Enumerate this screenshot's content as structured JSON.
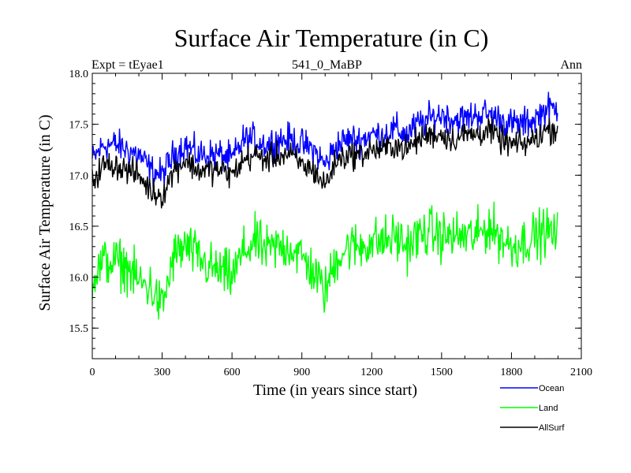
{
  "chart_data": {
    "type": "line",
    "title": "Surface Air Temperature (in C)",
    "subtitle_left": "Expt = tEyae1",
    "subtitle_center": "541_0_MaBP",
    "subtitle_right": "Ann",
    "xlabel": "Time (in years since start)",
    "ylabel": "Surface Air Temperature (in C)",
    "xlim": [
      0,
      2100
    ],
    "ylim": [
      15.2,
      18.0
    ],
    "xticks": [
      0,
      300,
      600,
      900,
      1200,
      1500,
      1800,
      2100
    ],
    "xtick_labels": [
      "0",
      "300",
      "600",
      "900",
      "1200",
      "1500",
      "1800",
      "2100"
    ],
    "yticks": [
      15.5,
      16.0,
      16.5,
      17.0,
      17.5,
      18.0
    ],
    "ytick_labels": [
      "15.5",
      "16.0",
      "16.5",
      "17.0",
      "17.5",
      "18.0"
    ],
    "legend_position": "below-right",
    "series": [
      {
        "name": "Ocean",
        "color": "#0000ff",
        "noise": 0.13,
        "x": [
          0,
          50,
          100,
          150,
          200,
          250,
          300,
          350,
          400,
          450,
          500,
          550,
          600,
          650,
          700,
          750,
          800,
          850,
          900,
          950,
          1000,
          1050,
          1100,
          1150,
          1200,
          1250,
          1300,
          1350,
          1400,
          1450,
          1500,
          1550,
          1600,
          1650,
          1700,
          1750,
          1800,
          1850,
          1900,
          1950,
          2000
        ],
        "values": [
          17.15,
          17.3,
          17.3,
          17.25,
          17.2,
          17.05,
          17.0,
          17.2,
          17.3,
          17.2,
          17.2,
          17.2,
          17.15,
          17.35,
          17.35,
          17.3,
          17.35,
          17.35,
          17.3,
          17.25,
          17.1,
          17.3,
          17.35,
          17.35,
          17.4,
          17.4,
          17.45,
          17.4,
          17.5,
          17.55,
          17.6,
          17.55,
          17.55,
          17.6,
          17.6,
          17.55,
          17.5,
          17.5,
          17.55,
          17.65,
          17.65
        ]
      },
      {
        "name": "Land",
        "color": "#00ff00",
        "noise": 0.2,
        "x": [
          0,
          50,
          100,
          150,
          200,
          250,
          300,
          350,
          400,
          450,
          500,
          550,
          600,
          650,
          700,
          750,
          800,
          850,
          900,
          950,
          1000,
          1050,
          1100,
          1150,
          1200,
          1250,
          1300,
          1350,
          1400,
          1450,
          1500,
          1550,
          1600,
          1650,
          1700,
          1750,
          1800,
          1850,
          1900,
          1950,
          2000
        ],
        "values": [
          16.0,
          16.15,
          16.15,
          16.1,
          15.95,
          15.9,
          15.7,
          16.2,
          16.3,
          16.2,
          16.1,
          16.05,
          16.0,
          16.25,
          16.35,
          16.25,
          16.3,
          16.3,
          16.2,
          16.05,
          15.85,
          16.2,
          16.3,
          16.3,
          16.35,
          16.35,
          16.4,
          16.3,
          16.4,
          16.45,
          16.4,
          16.4,
          16.4,
          16.4,
          16.5,
          16.4,
          16.3,
          16.35,
          16.4,
          16.45,
          16.4
        ]
      },
      {
        "name": "AllSurf",
        "color": "#000000",
        "noise": 0.11,
        "x": [
          0,
          50,
          100,
          150,
          200,
          250,
          300,
          350,
          400,
          450,
          500,
          550,
          600,
          650,
          700,
          750,
          800,
          850,
          900,
          950,
          1000,
          1050,
          1100,
          1150,
          1200,
          1250,
          1300,
          1350,
          1400,
          1450,
          1500,
          1550,
          1600,
          1650,
          1700,
          1750,
          1800,
          1850,
          1900,
          1950,
          2000
        ],
        "values": [
          16.95,
          17.1,
          17.1,
          17.05,
          17.0,
          16.85,
          16.8,
          17.05,
          17.15,
          17.05,
          17.05,
          17.05,
          17.0,
          17.15,
          17.2,
          17.15,
          17.2,
          17.2,
          17.1,
          17.05,
          16.9,
          17.15,
          17.2,
          17.2,
          17.25,
          17.25,
          17.3,
          17.25,
          17.35,
          17.4,
          17.4,
          17.35,
          17.4,
          17.4,
          17.45,
          17.35,
          17.3,
          17.3,
          17.35,
          17.45,
          17.45
        ]
      }
    ]
  }
}
